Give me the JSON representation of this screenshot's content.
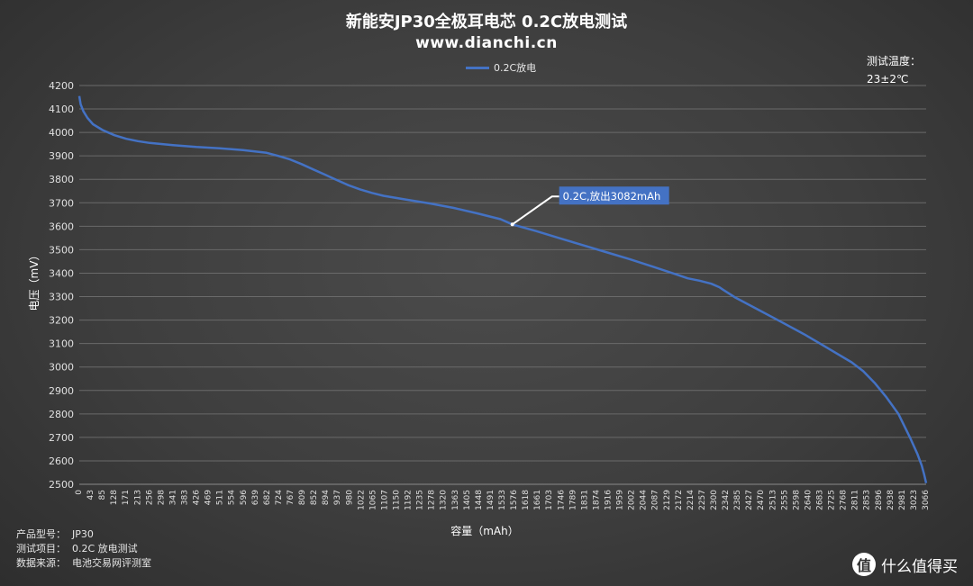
{
  "header": {
    "title": "新能安JP30全极耳电芯 0.2C放电测试",
    "subtitle": "www.dianchi.cn",
    "temp_label": "测试温度：",
    "temp_value": "23±2℃"
  },
  "footer": {
    "model_label": "产品型号：",
    "model_value": "JP30",
    "item_label": "测试项目：",
    "item_value": "0.2C 放电测试",
    "source_label": "数据来源：",
    "source_value": "电池交易网评测室"
  },
  "watermark": {
    "logo": "值",
    "text": "什么值得买"
  },
  "colors": {
    "line": "#4472c4",
    "annotation_bg": "#4472c4",
    "grid": "#6a6a6a"
  },
  "chart_data": {
    "type": "line",
    "xlabel": "容量（mAh）",
    "ylabel": "电压（mV）",
    "ylim": [
      2500,
      4200
    ],
    "y_ticks": [
      2500,
      2600,
      2700,
      2800,
      2900,
      3000,
      3100,
      3200,
      3300,
      3400,
      3500,
      3600,
      3700,
      3800,
      3900,
      4000,
      4100,
      4200
    ],
    "x_range": [
      0,
      3082
    ],
    "x_ticks": [
      "0",
      "43",
      "85",
      "128",
      "171",
      "213",
      "256",
      "298",
      "341",
      "383",
      "426",
      "469",
      "511",
      "554",
      "596",
      "639",
      "682",
      "724",
      "767",
      "809",
      "852",
      "894",
      "937",
      "980",
      "1022",
      "1065",
      "1107",
      "1150",
      "1192",
      "1235",
      "1278",
      "1320",
      "1363",
      "1405",
      "1448",
      "1491",
      "1533",
      "1576",
      "1618",
      "1661",
      "1703",
      "1746",
      "1789",
      "1831",
      "1874",
      "1916",
      "1959",
      "2002",
      "2044",
      "2087",
      "2129",
      "2172",
      "2214",
      "2257",
      "2300",
      "2342",
      "2385",
      "2427",
      "2470",
      "2513",
      "2555",
      "2598",
      "2640",
      "2683",
      "2725",
      "2768",
      "2811",
      "2853",
      "2896",
      "2938",
      "2981",
      "3023",
      "3066"
    ],
    "grid": true,
    "legend_position": "top",
    "series": [
      {
        "name": "0.2C放电",
        "x": [
          0,
          5,
          15,
          30,
          50,
          85,
          128,
          171,
          213,
          256,
          341,
          426,
          511,
          596,
          682,
          724,
          767,
          809,
          852,
          894,
          937,
          980,
          1022,
          1065,
          1107,
          1192,
          1278,
          1363,
          1448,
          1533,
          1576,
          1661,
          1746,
          1831,
          1916,
          2002,
          2087,
          2172,
          2214,
          2257,
          2300,
          2330,
          2342,
          2385,
          2470,
          2555,
          2640,
          2725,
          2811,
          2853,
          2896,
          2938,
          2981,
          3023,
          3050,
          3066,
          3075,
          3082
        ],
        "y": [
          4155,
          4120,
          4090,
          4062,
          4035,
          4010,
          3988,
          3973,
          3963,
          3955,
          3946,
          3938,
          3932,
          3925,
          3913,
          3900,
          3885,
          3865,
          3842,
          3820,
          3797,
          3775,
          3757,
          3742,
          3730,
          3713,
          3697,
          3678,
          3655,
          3630,
          3608,
          3580,
          3550,
          3520,
          3490,
          3460,
          3428,
          3395,
          3378,
          3368,
          3355,
          3340,
          3330,
          3298,
          3245,
          3192,
          3138,
          3080,
          3020,
          2982,
          2930,
          2870,
          2800,
          2700,
          2630,
          2580,
          2540,
          2505
        ]
      }
    ],
    "annotation": {
      "text": "0.2C,放出3082mAh",
      "x": 1576,
      "y": 3608
    }
  }
}
